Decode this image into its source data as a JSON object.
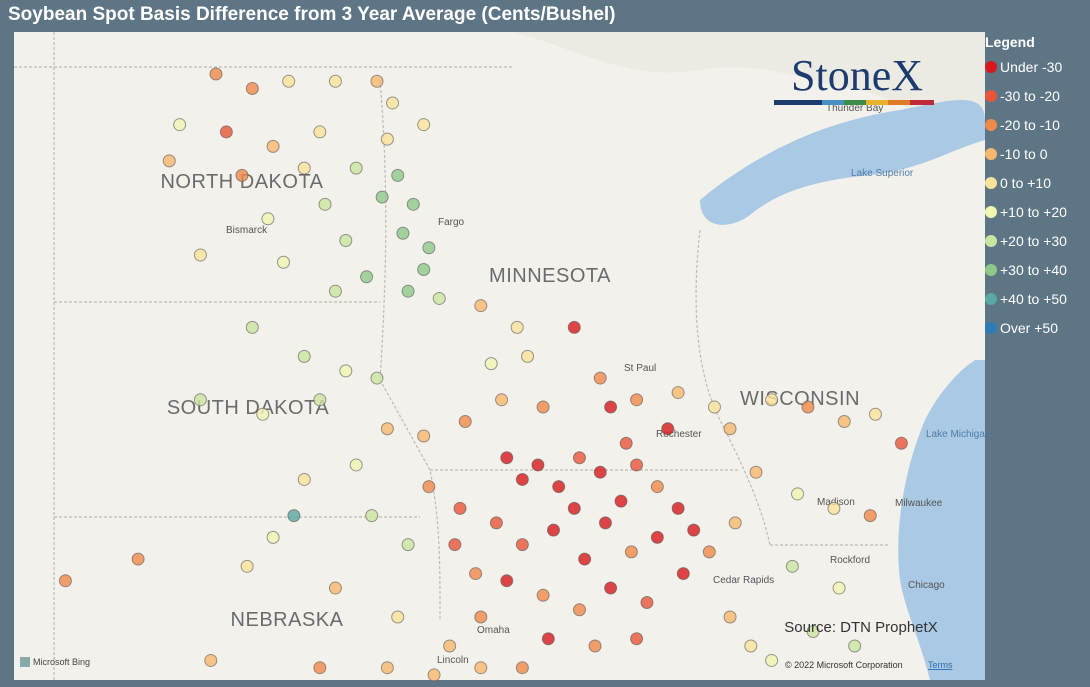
{
  "header": {
    "title": "Soybean Spot Basis Difference from 3 Year Average (Cents/Bushel)"
  },
  "logo": {
    "text": "StoneX"
  },
  "legend": {
    "title": "Legend",
    "items": [
      {
        "label": "Under -30",
        "color": "#d7191c"
      },
      {
        "label": "-30 to -20",
        "color": "#e8553a"
      },
      {
        "label": "-20 to -10",
        "color": "#f08a4b"
      },
      {
        "label": "-10 to 0",
        "color": "#f7b86e"
      },
      {
        "label": "0 to +10",
        "color": "#fbe29a"
      },
      {
        "label": "+10 to +20",
        "color": "#f0f5b0"
      },
      {
        "label": "+20 to +30",
        "color": "#c9e6a0"
      },
      {
        "label": "+30 to +40",
        "color": "#8fc98a"
      },
      {
        "label": "+40 to +50",
        "color": "#5aa8a0"
      },
      {
        "label": "Over +50",
        "color": "#2b7bb9"
      }
    ]
  },
  "map": {
    "lon_range": [
      -104.79,
      -86.09
    ],
    "lat_range": [
      49.68,
      40.73
    ],
    "labels": {
      "states": [
        "NORTH DAKOTA",
        "MINNESOTA",
        "SOUTH DAKOTA",
        "WISCONSIN",
        "NEBRASKA"
      ],
      "cities": [
        "Bismarck",
        "Fargo",
        "St Paul",
        "Rochester",
        "Madison",
        "Milwaukee",
        "Rockford",
        "Chicago",
        "Cedar Rapids",
        "Omaha",
        "Lincoln",
        "Thunder Bay",
        "Lake Superior",
        "Lake Michigan"
      ]
    },
    "points": [
      [
        -100.9,
        49.1,
        2
      ],
      [
        -100.2,
        48.9,
        2
      ],
      [
        -99.5,
        49.0,
        4
      ],
      [
        -98.6,
        49.0,
        4
      ],
      [
        -97.8,
        49.0,
        3
      ],
      [
        -97.5,
        48.7,
        4
      ],
      [
        -101.6,
        48.4,
        5
      ],
      [
        -100.7,
        48.3,
        1
      ],
      [
        -99.8,
        48.1,
        3
      ],
      [
        -98.9,
        48.3,
        4
      ],
      [
        -97.6,
        48.2,
        4
      ],
      [
        -96.9,
        48.4,
        4
      ],
      [
        -101.8,
        47.9,
        3
      ],
      [
        -100.4,
        47.7,
        2
      ],
      [
        -99.2,
        47.8,
        4
      ],
      [
        -98.2,
        47.8,
        6
      ],
      [
        -97.4,
        47.7,
        7
      ],
      [
        -97.1,
        47.3,
        7
      ],
      [
        -97.3,
        46.9,
        7
      ],
      [
        -96.8,
        46.7,
        7
      ],
      [
        -96.9,
        46.4,
        7
      ],
      [
        -97.2,
        46.1,
        7
      ],
      [
        -96.6,
        46.0,
        6
      ],
      [
        -98.4,
        46.8,
        6
      ],
      [
        -99.6,
        46.5,
        5
      ],
      [
        -98.6,
        46.1,
        6
      ],
      [
        -98.0,
        46.3,
        7
      ],
      [
        -97.7,
        47.4,
        7
      ],
      [
        -98.8,
        47.3,
        6
      ],
      [
        -99.9,
        47.1,
        5
      ],
      [
        -101.2,
        46.6,
        4
      ],
      [
        -100.2,
        45.6,
        6
      ],
      [
        -99.2,
        45.2,
        6
      ],
      [
        -98.4,
        45.0,
        5
      ],
      [
        -97.8,
        44.9,
        6
      ],
      [
        -101.2,
        44.6,
        6
      ],
      [
        -100.0,
        44.4,
        5
      ],
      [
        -98.9,
        44.6,
        6
      ],
      [
        -97.6,
        44.2,
        3
      ],
      [
        -96.9,
        44.1,
        3
      ],
      [
        -98.2,
        43.7,
        5
      ],
      [
        -99.2,
        43.5,
        4
      ],
      [
        -97.9,
        43.0,
        6
      ],
      [
        -96.8,
        43.4,
        2
      ],
      [
        -96.2,
        43.1,
        1
      ],
      [
        -97.2,
        42.6,
        6
      ],
      [
        -99.4,
        43.0,
        8
      ],
      [
        -99.8,
        42.7,
        5
      ],
      [
        -95.8,
        45.9,
        3
      ],
      [
        -95.1,
        45.6,
        4
      ],
      [
        -95.6,
        45.1,
        5
      ],
      [
        -94.9,
        45.2,
        4
      ],
      [
        -94.0,
        45.6,
        0
      ],
      [
        -93.5,
        44.9,
        2
      ],
      [
        -94.6,
        44.5,
        2
      ],
      [
        -95.4,
        44.6,
        3
      ],
      [
        -96.1,
        44.3,
        2
      ],
      [
        -93.3,
        44.5,
        0
      ],
      [
        -92.8,
        44.6,
        2
      ],
      [
        -92.0,
        44.7,
        3
      ],
      [
        -91.3,
        44.5,
        4
      ],
      [
        -95.3,
        43.8,
        0
      ],
      [
        -95.0,
        43.5,
        0
      ],
      [
        -94.7,
        43.7,
        0
      ],
      [
        -94.3,
        43.4,
        0
      ],
      [
        -93.9,
        43.8,
        1
      ],
      [
        -93.5,
        43.6,
        0
      ],
      [
        -93.1,
        43.2,
        0
      ],
      [
        -92.8,
        43.7,
        1
      ],
      [
        -92.4,
        43.4,
        2
      ],
      [
        -92.0,
        43.1,
        0
      ],
      [
        -91.7,
        42.8,
        0
      ],
      [
        -92.4,
        42.7,
        0
      ],
      [
        -92.9,
        42.5,
        2
      ],
      [
        -93.4,
        42.9,
        0
      ],
      [
        -93.8,
        42.4,
        0
      ],
      [
        -94.4,
        42.8,
        0
      ],
      [
        -95.0,
        42.6,
        1
      ],
      [
        -95.5,
        42.9,
        1
      ],
      [
        -95.9,
        42.2,
        2
      ],
      [
        -95.3,
        42.1,
        0
      ],
      [
        -94.6,
        41.9,
        2
      ],
      [
        -93.9,
        41.7,
        2
      ],
      [
        -93.3,
        42.0,
        0
      ],
      [
        -92.6,
        41.8,
        1
      ],
      [
        -91.9,
        42.2,
        0
      ],
      [
        -91.4,
        42.5,
        2
      ],
      [
        -94.5,
        41.3,
        0
      ],
      [
        -93.6,
        41.2,
        2
      ],
      [
        -92.8,
        41.3,
        1
      ],
      [
        -95.8,
        41.6,
        2
      ],
      [
        -96.3,
        42.6,
        1
      ],
      [
        -94.0,
        43.1,
        0
      ],
      [
        -93.0,
        44.0,
        1
      ],
      [
        -92.2,
        44.2,
        0
      ],
      [
        -91.0,
        44.2,
        3
      ],
      [
        -90.2,
        44.6,
        4
      ],
      [
        -89.5,
        44.5,
        2
      ],
      [
        -88.8,
        44.3,
        3
      ],
      [
        -88.2,
        44.4,
        4
      ],
      [
        -87.7,
        44.0,
        1
      ],
      [
        -90.5,
        43.6,
        3
      ],
      [
        -89.7,
        43.3,
        5
      ],
      [
        -89.0,
        43.1,
        4
      ],
      [
        -88.3,
        43.0,
        2
      ],
      [
        -90.9,
        42.9,
        3
      ],
      [
        -89.8,
        42.3,
        6
      ],
      [
        -88.9,
        42.0,
        5
      ],
      [
        -89.4,
        41.4,
        6
      ],
      [
        -88.6,
        41.2,
        6
      ],
      [
        -90.2,
        41.0,
        5
      ],
      [
        -91.0,
        41.6,
        3
      ],
      [
        -90.6,
        41.2,
        4
      ],
      [
        -102.4,
        42.4,
        2
      ],
      [
        -103.8,
        42.1,
        2
      ],
      [
        -100.3,
        42.3,
        4
      ],
      [
        -98.6,
        42.0,
        3
      ],
      [
        -97.4,
        41.6,
        4
      ],
      [
        -96.4,
        41.2,
        3
      ],
      [
        -97.6,
        40.9,
        3
      ],
      [
        -96.7,
        40.8,
        3
      ],
      [
        -98.9,
        40.9,
        2
      ],
      [
        -101.0,
        41.0,
        3
      ],
      [
        -95.8,
        40.9,
        3
      ],
      [
        -95.0,
        40.9,
        2
      ]
    ]
  },
  "footer": {
    "source": "Source: DTN ProphetX",
    "attribution": "Microsoft Bing",
    "copyright": "© 2022 Microsoft Corporation",
    "terms": "Terms"
  }
}
